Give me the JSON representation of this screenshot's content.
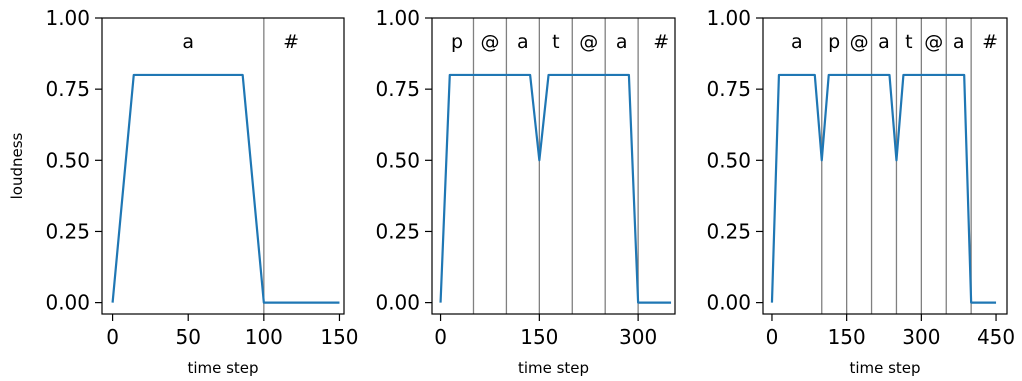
{
  "chart_data": [
    {
      "type": "line",
      "xlabel": "time step",
      "ylabel": "loudness",
      "xlim": [
        -7,
        153
      ],
      "ylim": [
        -0.04,
        1.0
      ],
      "xticks": [
        0,
        50,
        100,
        150
      ],
      "yticks": [
        "0.00",
        "0.25",
        "0.50",
        "0.75",
        "1.00"
      ],
      "boundaries": [
        100
      ],
      "segments": [
        {
          "label": "a",
          "x": 50
        },
        {
          "label": "#",
          "x": 118
        }
      ],
      "series": [
        {
          "color": "#1f77b4",
          "x": [
            0,
            14,
            86,
            100,
            150
          ],
          "y": [
            0.0,
            0.8,
            0.8,
            0.0,
            0.0
          ]
        }
      ]
    },
    {
      "type": "line",
      "xlabel": "time step",
      "ylabel": "",
      "xlim": [
        -13,
        356
      ],
      "ylim": [
        -0.04,
        1.0
      ],
      "xticks": [
        0,
        150,
        300
      ],
      "yticks": [
        "0.00",
        "0.25",
        "0.50",
        "0.75",
        "1.00"
      ],
      "boundaries": [
        50,
        100,
        150,
        200,
        250,
        300
      ],
      "segments": [
        {
          "label": "p",
          "x": 25
        },
        {
          "label": "@",
          "x": 75
        },
        {
          "label": "a",
          "x": 125
        },
        {
          "label": "t",
          "x": 175
        },
        {
          "label": "@",
          "x": 225
        },
        {
          "label": "a",
          "x": 275
        },
        {
          "label": "#",
          "x": 335
        }
      ],
      "series": [
        {
          "color": "#1f77b4",
          "x": [
            0,
            14,
            136,
            150,
            164,
            286,
            300,
            350
          ],
          "y": [
            0.0,
            0.8,
            0.8,
            0.5,
            0.8,
            0.8,
            0.0,
            0.0
          ]
        }
      ]
    },
    {
      "type": "line",
      "xlabel": "time step",
      "ylabel": "",
      "xlim": [
        -18,
        472
      ],
      "ylim": [
        -0.04,
        1.0
      ],
      "xticks": [
        0,
        150,
        300,
        450
      ],
      "yticks": [
        "0.00",
        "0.25",
        "0.50",
        "0.75",
        "1.00"
      ],
      "boundaries": [
        100,
        150,
        200,
        250,
        300,
        350,
        400
      ],
      "segments": [
        {
          "label": "a",
          "x": 50
        },
        {
          "label": "p",
          "x": 125
        },
        {
          "label": "@",
          "x": 175
        },
        {
          "label": "a",
          "x": 225
        },
        {
          "label": "t",
          "x": 275
        },
        {
          "label": "@",
          "x": 325
        },
        {
          "label": "a",
          "x": 375
        },
        {
          "label": "#",
          "x": 438
        }
      ],
      "series": [
        {
          "color": "#1f77b4",
          "x": [
            0,
            14,
            86,
            100,
            114,
            236,
            250,
            264,
            386,
            400,
            450
          ],
          "y": [
            0.0,
            0.8,
            0.8,
            0.5,
            0.8,
            0.8,
            0.5,
            0.8,
            0.8,
            0.0,
            0.0
          ]
        }
      ]
    }
  ]
}
